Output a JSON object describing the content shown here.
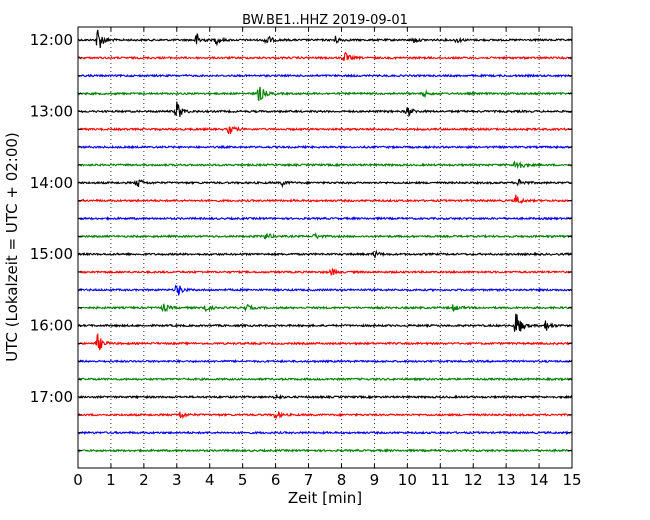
{
  "chart_data": {
    "type": "line",
    "title": "BW.BE1..HHZ 2019-09-01",
    "xlabel": "Zeit  [min]",
    "ylabel": "UTC (Lokalzeit = UTC + 02:00)",
    "xlim": [
      0,
      15
    ],
    "x_ticks": [
      0,
      1,
      2,
      3,
      4,
      5,
      6,
      7,
      8,
      9,
      10,
      11,
      12,
      13,
      14,
      15
    ],
    "x_tick_labels": [
      "0",
      "1",
      "2",
      "3",
      "4",
      "5",
      "6",
      "7",
      "8",
      "9",
      "10",
      "11",
      "12",
      "13",
      "14",
      "15"
    ],
    "y_tick_labels": [
      "12:00",
      "13:00",
      "14:00",
      "15:00",
      "16:00",
      "17:00"
    ],
    "grid": "vertical dotted at each minute",
    "color_cycle": [
      "#000000",
      "#ff0000",
      "#0000ff",
      "#008000"
    ],
    "series": [
      {
        "start": "12:00",
        "events": [
          {
            "x": 0.6,
            "amp": 1.0
          },
          {
            "x": 3.6,
            "amp": 0.5
          },
          {
            "x": 4.2,
            "amp": 0.3
          },
          {
            "x": 5.7,
            "amp": 0.5
          },
          {
            "x": 7.8,
            "amp": 0.3
          },
          {
            "x": 10.2,
            "amp": 0.2
          },
          {
            "x": 11.5,
            "amp": 0.2
          }
        ]
      },
      {
        "start": "12:15",
        "events": [
          {
            "x": 8.1,
            "amp": 0.4
          }
        ]
      },
      {
        "start": "12:30",
        "events": []
      },
      {
        "start": "12:45",
        "events": [
          {
            "x": 5.5,
            "amp": 0.7
          },
          {
            "x": 10.5,
            "amp": 0.2
          }
        ]
      },
      {
        "start": "13:00",
        "events": [
          {
            "x": 3.0,
            "amp": 0.8
          },
          {
            "x": 10.0,
            "amp": 0.4
          }
        ]
      },
      {
        "start": "13:15",
        "events": [
          {
            "x": 4.6,
            "amp": 0.4
          }
        ]
      },
      {
        "start": "13:30",
        "events": []
      },
      {
        "start": "13:45",
        "events": [
          {
            "x": 13.3,
            "amp": 0.7
          }
        ]
      },
      {
        "start": "14:00",
        "events": [
          {
            "x": 1.8,
            "amp": 0.4
          },
          {
            "x": 6.2,
            "amp": 0.2
          },
          {
            "x": 13.4,
            "amp": 0.3
          }
        ]
      },
      {
        "start": "14:15",
        "events": [
          {
            "x": 13.3,
            "amp": 0.4
          }
        ]
      },
      {
        "start": "14:30",
        "events": []
      },
      {
        "start": "14:45",
        "events": [
          {
            "x": 5.7,
            "amp": 0.3
          },
          {
            "x": 7.2,
            "amp": 0.2
          }
        ]
      },
      {
        "start": "15:00",
        "events": [
          {
            "x": 9.0,
            "amp": 0.25
          }
        ]
      },
      {
        "start": "15:15",
        "events": [
          {
            "x": 7.7,
            "amp": 0.25
          }
        ]
      },
      {
        "start": "15:30",
        "events": [
          {
            "x": 3.0,
            "amp": 0.6
          }
        ]
      },
      {
        "start": "15:45",
        "events": [
          {
            "x": 2.6,
            "amp": 0.3
          },
          {
            "x": 3.8,
            "amp": 0.4
          },
          {
            "x": 5.1,
            "amp": 0.25
          },
          {
            "x": 11.4,
            "amp": 0.25
          }
        ]
      },
      {
        "start": "16:00",
        "events": [
          {
            "x": 13.3,
            "amp": 1.2
          },
          {
            "x": 14.2,
            "amp": 0.4
          }
        ]
      },
      {
        "start": "16:15",
        "events": [
          {
            "x": 0.6,
            "amp": 0.7
          }
        ]
      },
      {
        "start": "16:30",
        "events": []
      },
      {
        "start": "16:45",
        "events": []
      },
      {
        "start": "17:00",
        "events": [
          {
            "x": 6.0,
            "amp": 0.15
          }
        ]
      },
      {
        "start": "17:15",
        "events": [
          {
            "x": 3.1,
            "amp": 0.3
          },
          {
            "x": 6.0,
            "amp": 0.3
          }
        ]
      },
      {
        "start": "17:30",
        "events": []
      },
      {
        "start": "17:45",
        "events": []
      }
    ]
  }
}
